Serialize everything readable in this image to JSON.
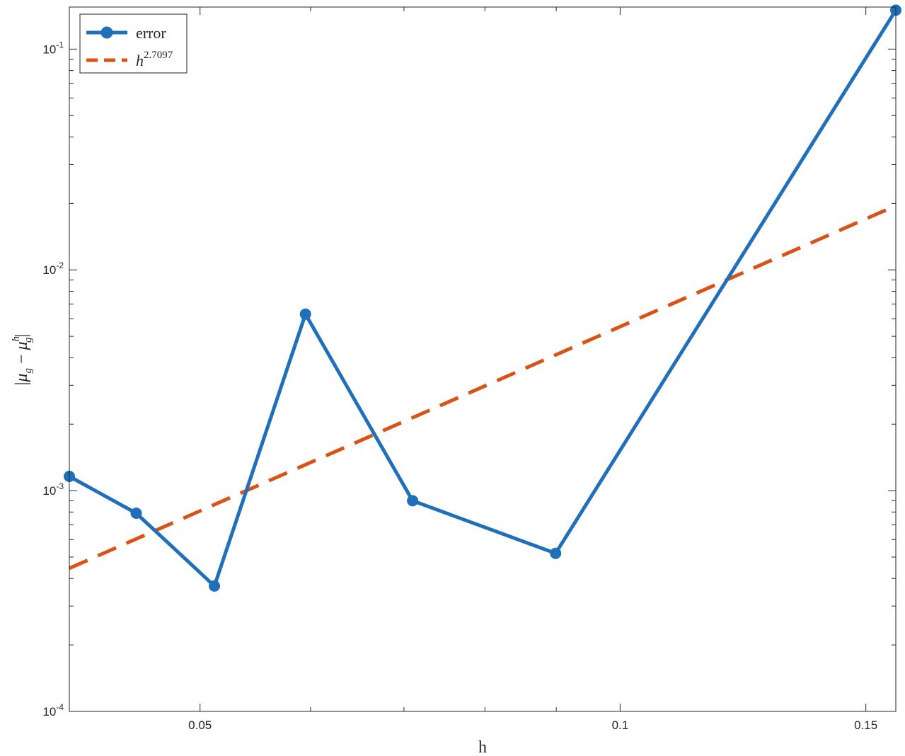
{
  "chart_data": {
    "type": "line",
    "x_scale": "log",
    "y_scale": "log",
    "xlabel": "h",
    "ylabel": "|μg − μhg|",
    "ylabel_parts": {
      "open": "|",
      "mu1": "μ",
      "sub1": "g",
      "minus": " − ",
      "mu2": "μ",
      "sup2": "h",
      "sub2": "g",
      "close": "|"
    },
    "xlim": [
      0.0403,
      0.1576
    ],
    "ylim": [
      0.0001,
      0.155
    ],
    "x_ticks": [
      {
        "value": 0.05,
        "label": "0.05"
      },
      {
        "value": 0.1,
        "label": "0.1"
      },
      {
        "value": 0.15,
        "label": "0.15"
      }
    ],
    "y_ticks": [
      {
        "value": 0.0001,
        "base": "10",
        "exp": "-4"
      },
      {
        "value": 0.001,
        "base": "10",
        "exp": "-3"
      },
      {
        "value": 0.01,
        "base": "10",
        "exp": "-2"
      },
      {
        "value": 0.1,
        "base": "10",
        "exp": "-1"
      }
    ],
    "grid": false,
    "legend_position": "top-left",
    "series": [
      {
        "name": "error",
        "style": "solid-with-circle-markers",
        "color": "#1f6fba",
        "x": [
          0.0403,
          0.045,
          0.0512,
          0.0595,
          0.071,
          0.0899,
          0.1576
        ],
        "y": [
          0.00116,
          0.00079,
          0.00037,
          0.0063,
          0.0009,
          0.00052,
          0.15
        ]
      },
      {
        "name": "h^2.7097",
        "name_parts": {
          "base": "h",
          "exp": "2.7097"
        },
        "style": "dashed",
        "color": "#d95319",
        "exponent": 2.7097,
        "x": [
          0.0403,
          0.1576
        ],
        "y": [
          0.000445,
          0.01953
        ]
      }
    ]
  }
}
